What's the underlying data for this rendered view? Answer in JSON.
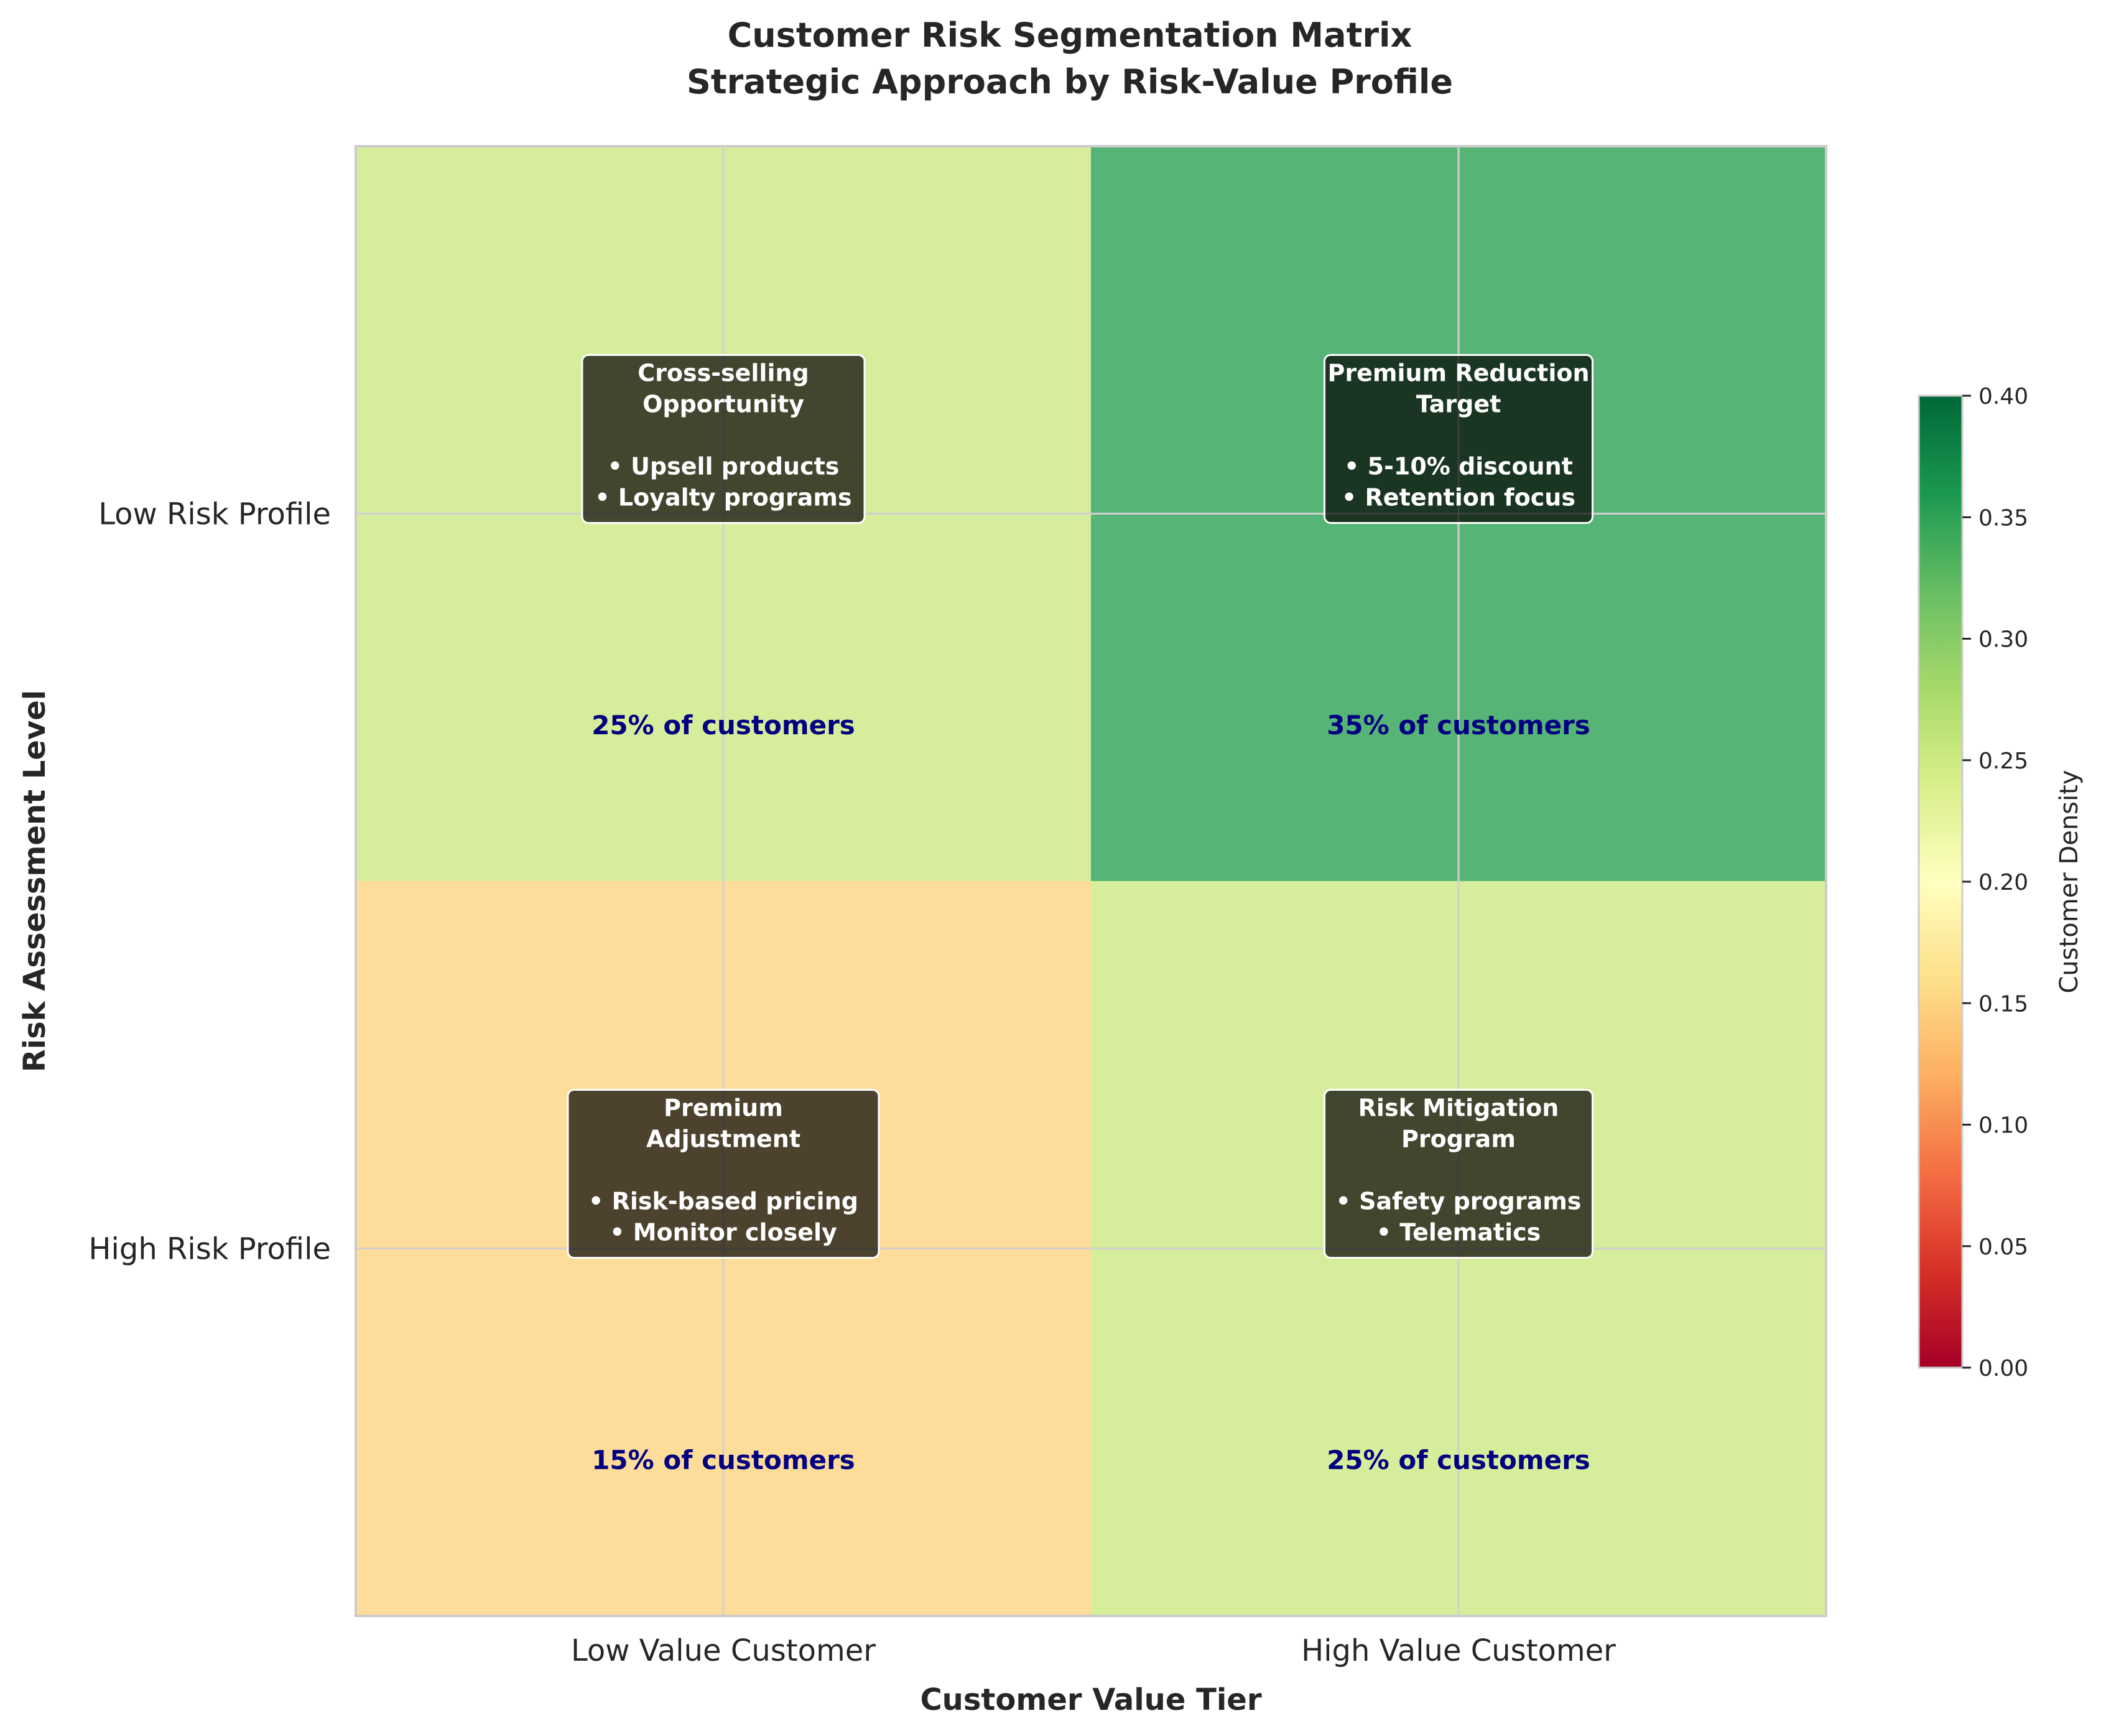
{
  "chart_data": {
    "type": "heatmap",
    "title": "Customer Risk Segmentation Matrix",
    "subtitle": "Strategic Approach by Risk-Value Profile",
    "xlabel": "Customer Value Tier",
    "ylabel": "Risk Assessment Level",
    "x_categories": [
      "Low Value Customer",
      "High Value Customer"
    ],
    "y_categories": [
      "Low Risk Profile",
      "High Risk Profile"
    ],
    "values": [
      [
        0.25,
        0.35
      ],
      [
        0.15,
        0.25
      ]
    ],
    "cell_labels": [
      [
        "25% of customers",
        "35% of customers"
      ],
      [
        "15% of customers",
        "25% of customers"
      ]
    ],
    "strategies": [
      [
        {
          "lines": [
            "Cross-selling",
            "Opportunity",
            "",
            "• Upsell products",
            "• Loyalty programs"
          ]
        },
        {
          "lines": [
            "Premium Reduction",
            "Target",
            "",
            "• 5-10% discount",
            "• Retention focus"
          ]
        }
      ],
      [
        {
          "lines": [
            "Premium",
            "Adjustment",
            "",
            "• Risk-based pricing",
            "• Monitor closely"
          ]
        },
        {
          "lines": [
            "Risk Mitigation",
            "Program",
            "",
            "• Safety programs",
            "• Telematics"
          ]
        }
      ]
    ],
    "colorbar": {
      "label": "Customer Density",
      "range": [
        0.0,
        0.4
      ],
      "ticks": [
        "0.00",
        "0.05",
        "0.10",
        "0.15",
        "0.20",
        "0.25",
        "0.30",
        "0.35",
        "0.40"
      ],
      "colormap": "RdYlGn"
    },
    "grid": true
  }
}
